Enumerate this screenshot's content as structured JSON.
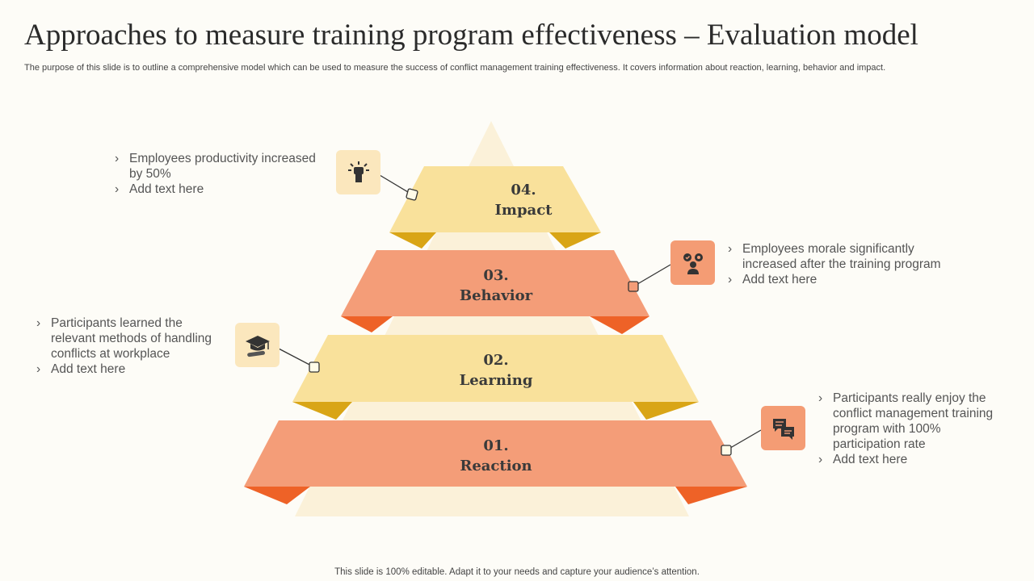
{
  "title": "Approaches to measure training program effectiveness – Evaluation model",
  "subtitle": "The purpose of this slide is to outline a comprehensive model which can be used to measure the success of conflict management training effectiveness. It covers information about reaction, learning, behavior and impact.",
  "footer": "This slide is 100% editable. Adapt it to your needs and capture your audience’s attention.",
  "colors": {
    "yellow": "#f9e19b",
    "yellow_fold": "#d9a516",
    "salmon": "#f49d78",
    "salmon_fold": "#ee6227",
    "cream": "#fbf1d9",
    "background": "#fdfcf7"
  },
  "tiers": [
    {
      "number": "04.",
      "name": "Impact",
      "icon": "fist-raised-icon",
      "bullets": [
        "Employees productivity increased by 50%",
        "Add text here"
      ]
    },
    {
      "number": "03.",
      "name": "Behavior",
      "icon": "people-feedback-icon",
      "bullets": [
        "Employees morale significantly increased after the training program",
        "Add text here"
      ]
    },
    {
      "number": "02.",
      "name": "Learning",
      "icon": "graduation-cap-icon",
      "bullets": [
        "Participants learned the relevant methods of handling conflicts at workplace",
        "Add text here"
      ]
    },
    {
      "number": "01.",
      "name": "Reaction",
      "icon": "chat-bubbles-icon",
      "bullets": [
        "Participants really enjoy the conflict management training program with 100% participation rate",
        "Add text here"
      ]
    }
  ]
}
